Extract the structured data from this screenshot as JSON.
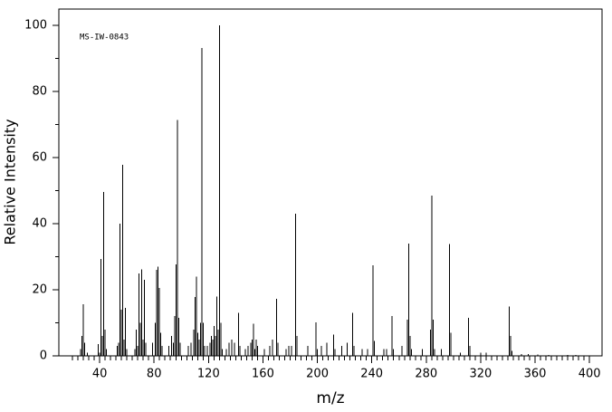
{
  "chart_data": {
    "type": "stem",
    "annotation": "MS-IW-0843",
    "x_label": "m/z",
    "y_label": "Relative Intensity",
    "color": "#000000",
    "xlim": [
      10,
      409.2
    ],
    "ylim": [
      0,
      105
    ],
    "xticks": [
      40,
      80,
      120,
      160,
      200,
      240,
      280,
      320,
      360,
      400
    ],
    "xminorticks": [
      20,
      24,
      28,
      32,
      36,
      44,
      48,
      52,
      56,
      60,
      64,
      68,
      72,
      76,
      84,
      88,
      92,
      96,
      100,
      104,
      108,
      112,
      116,
      124,
      128,
      132,
      136,
      140,
      144,
      148,
      152,
      156,
      164,
      168,
      172,
      176,
      180,
      184,
      188,
      192,
      196,
      204,
      208,
      212,
      216,
      220,
      224,
      228,
      232,
      236,
      244,
      248,
      252,
      256,
      260,
      264,
      268,
      272,
      276,
      284,
      288,
      292,
      296,
      300,
      304,
      308,
      312,
      316,
      324,
      328,
      332,
      336,
      340,
      344,
      348,
      352,
      356,
      364,
      368,
      372,
      376,
      380,
      384,
      388,
      392,
      396
    ],
    "yticks": [
      0,
      20,
      40,
      60,
      80,
      100
    ],
    "yminorticks": [
      10,
      30,
      50,
      70,
      90
    ],
    "x": [
      26,
      27,
      28,
      29,
      31,
      39,
      40,
      41,
      42,
      43,
      44,
      45,
      53,
      54,
      55,
      56,
      57,
      58,
      59,
      60,
      66,
      67,
      68,
      69,
      70,
      71,
      72,
      73,
      74,
      79,
      81,
      82,
      83,
      84,
      85,
      86,
      91,
      93,
      94,
      95,
      96,
      97,
      98,
      99,
      105,
      107,
      109,
      110,
      111,
      112,
      113,
      114,
      115,
      116,
      117,
      119,
      121,
      122,
      123,
      124,
      125,
      126,
      127,
      128,
      129,
      130,
      133,
      135,
      137,
      139,
      142,
      143,
      147,
      149,
      151,
      152,
      153,
      154,
      155,
      156,
      161,
      165,
      167,
      170,
      171,
      177,
      179,
      181,
      184,
      185,
      193,
      199,
      200,
      203,
      207,
      212,
      213,
      218,
      222,
      226,
      227,
      233,
      237,
      241,
      242,
      249,
      251,
      255,
      256,
      262,
      266,
      267,
      268,
      269,
      277,
      283,
      284,
      285,
      286,
      291,
      297,
      298,
      305,
      311,
      312,
      320,
      324,
      341,
      342,
      343,
      350,
      355,
      362,
      370,
      384,
      390
    ],
    "values": [
      2,
      6,
      15.6,
      4,
      1,
      3.5,
      1,
      29.3,
      6,
      49.6,
      8,
      2,
      3,
      4,
      40,
      14,
      57.8,
      5,
      14.5,
      2,
      2,
      8,
      3,
      25,
      10,
      26.2,
      5,
      23,
      4,
      4,
      10,
      26,
      27,
      20.5,
      7,
      3,
      3,
      6,
      4,
      12,
      27.7,
      71.4,
      11.5,
      4,
      3,
      4,
      8,
      17.8,
      24,
      7,
      5,
      10,
      93.2,
      10,
      3,
      3,
      4,
      6,
      5,
      9,
      6,
      18,
      8,
      100,
      10,
      2,
      2,
      4,
      5,
      4,
      13,
      3,
      2,
      3,
      4,
      5,
      9.7,
      2,
      5,
      3,
      2,
      3,
      5,
      17.3,
      4,
      2,
      3,
      3,
      43,
      6,
      3,
      10.2,
      2,
      3,
      4,
      6.5,
      2,
      3,
      4,
      13,
      3,
      2,
      2,
      27.4,
      4.5,
      2,
      2,
      12,
      2,
      3,
      11,
      34,
      6,
      2,
      2,
      8,
      48.5,
      11,
      2,
      2,
      33.9,
      7,
      1,
      11.5,
      3,
      1,
      1,
      15,
      6,
      1.5,
      0.5,
      0.5,
      0.4,
      0.3,
      0.3,
      0.3
    ]
  }
}
